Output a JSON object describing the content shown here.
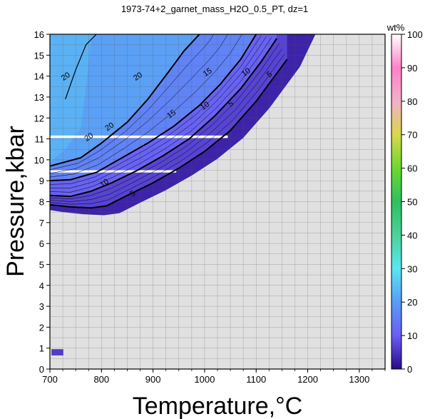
{
  "chart_data": {
    "type": "heatmap",
    "title": "1973-74+2_garnet_mass_H2O_0.5_PT, dz=1",
    "xlabel": "Temperature,°C",
    "ylabel": "Pressure,kbar",
    "xlim": [
      700,
      1350
    ],
    "ylim": [
      0,
      16
    ],
    "x_ticks": [
      700,
      800,
      900,
      1000,
      1100,
      1200,
      1300
    ],
    "x_tick_labels": [
      "700",
      "800",
      "900",
      "1000",
      "1100",
      "1200",
      "1300"
    ],
    "y_ticks": [
      0,
      1,
      2,
      3,
      4,
      5,
      6,
      7,
      8,
      9,
      10,
      11,
      12,
      13,
      14,
      15,
      16
    ],
    "y_tick_labels": [
      "0",
      "1",
      "2",
      "3",
      "4",
      "5",
      "6",
      "7",
      "8",
      "9",
      "10",
      "11",
      "12",
      "13",
      "14",
      "15",
      "16"
    ],
    "grid": true,
    "no_data_color": "#e0e0e0",
    "colorbar": {
      "label": "wt%",
      "range": [
        0,
        100
      ],
      "ticks": [
        0,
        10,
        20,
        30,
        40,
        50,
        60,
        70,
        80,
        90,
        100
      ],
      "tick_labels": [
        "0",
        "10",
        "20",
        "30",
        "40",
        "50",
        "60",
        "70",
        "80",
        "90",
        "100"
      ],
      "colors": [
        "#2a0a88",
        "#6a5df6",
        "#5a9cf5",
        "#5ae6f0",
        "#4cd29a",
        "#2ec060",
        "#6cd830",
        "#d8d84a",
        "#f2b0c8",
        "#ff80c8",
        "#ffffff"
      ]
    },
    "contours": [
      {
        "level": 5,
        "label": "5",
        "points": [
          [
            700,
            7.85
          ],
          [
            740,
            7.75
          ],
          [
            780,
            7.7
          ],
          [
            810,
            7.8
          ],
          [
            850,
            8.3
          ],
          [
            900,
            8.9
          ],
          [
            950,
            9.6
          ],
          [
            1000,
            10.4
          ],
          [
            1050,
            11.4
          ],
          [
            1100,
            12.8
          ],
          [
            1130,
            13.8
          ],
          [
            1160,
            14.8
          ]
        ],
        "label_positions": [
          [
            860,
            8.4
          ],
          [
            1050,
            12.7
          ],
          [
            1125,
            14.1
          ]
        ]
      },
      {
        "level": 10,
        "label": "10",
        "points": [
          [
            700,
            8.3
          ],
          [
            740,
            8.25
          ],
          [
            780,
            8.5
          ],
          [
            820,
            8.9
          ],
          [
            870,
            9.5
          ],
          [
            920,
            10.2
          ],
          [
            970,
            11.0
          ],
          [
            1020,
            12.1
          ],
          [
            1070,
            13.4
          ],
          [
            1110,
            14.7
          ],
          [
            1140,
            15.8
          ]
        ],
        "label_positions": [
          [
            805,
            8.9
          ],
          [
            1000,
            12.6
          ],
          [
            1080,
            14.2
          ]
        ]
      },
      {
        "level": 15,
        "label": "15",
        "points": [
          [
            700,
            9.0
          ],
          [
            740,
            9.05
          ],
          [
            790,
            9.4
          ],
          [
            840,
            10.1
          ],
          [
            890,
            10.8
          ],
          [
            940,
            11.6
          ],
          [
            990,
            12.6
          ],
          [
            1030,
            13.6
          ],
          [
            1070,
            14.8
          ],
          [
            1100,
            16.0
          ]
        ],
        "label_positions": [
          [
            935,
            12.2
          ],
          [
            1005,
            14.2
          ]
        ]
      },
      {
        "level": 20,
        "label": "20",
        "points": [
          [
            700,
            9.7
          ],
          [
            760,
            10.1
          ],
          [
            800,
            10.8
          ],
          [
            850,
            11.8
          ],
          [
            890,
            12.9
          ],
          [
            930,
            14.2
          ],
          [
            960,
            15.2
          ],
          [
            990,
            16.0
          ]
        ],
        "label_positions": [
          [
            775,
            11.1
          ],
          [
            815,
            11.6
          ],
          [
            730,
            14.0
          ],
          [
            870,
            14.0
          ]
        ]
      },
      {
        "level": 22,
        "label": "",
        "points": [
          [
            730,
            12.9
          ],
          [
            750,
            14.3
          ],
          [
            770,
            15.5
          ],
          [
            790,
            16.0
          ]
        ],
        "label_positions": []
      }
    ],
    "white_stripes_kbar": [
      11.1,
      9.45
    ]
  }
}
